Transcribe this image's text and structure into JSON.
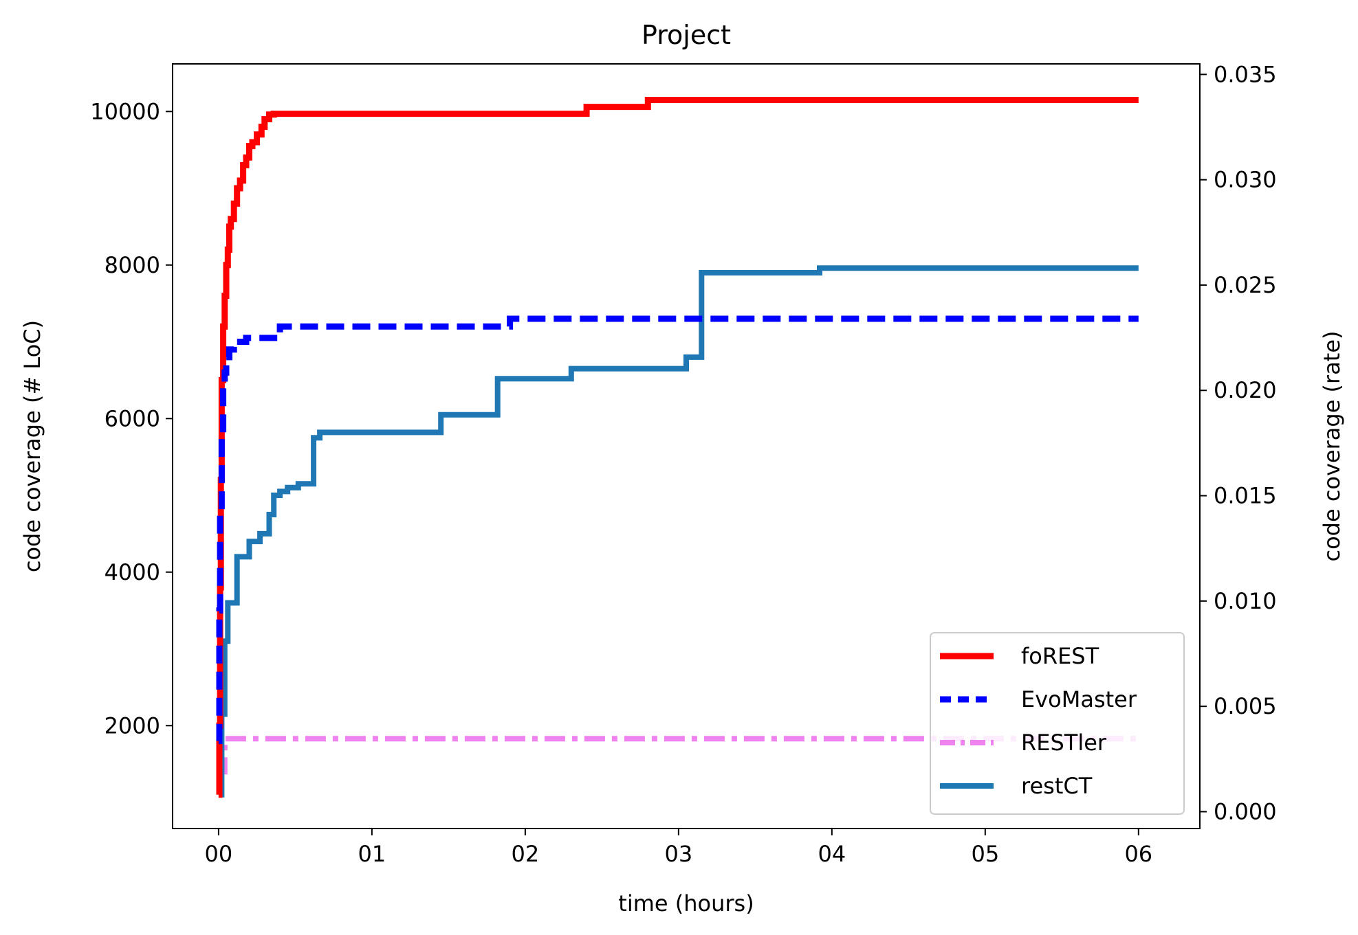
{
  "chart_data": {
    "type": "line",
    "title": "Project",
    "xlabel": "time (hours)",
    "ylabel": "code coverage (# LoC)",
    "y2label": "code coverage (rate)",
    "xlim": [
      -0.3,
      6.4
    ],
    "ylim": [
      660,
      10620
    ],
    "y2lim": [
      -0.0008,
      0.0355
    ],
    "xticks": [
      0,
      1,
      2,
      3,
      4,
      5,
      6
    ],
    "xtick_labels": [
      "00",
      "01",
      "02",
      "03",
      "04",
      "05",
      "06"
    ],
    "yticks": [
      2000,
      4000,
      6000,
      8000,
      10000
    ],
    "ytick_labels": [
      "2000",
      "4000",
      "6000",
      "8000",
      "10000"
    ],
    "y2ticks": [
      0.0,
      0.005,
      0.01,
      0.015,
      0.02,
      0.025,
      0.03,
      0.035
    ],
    "y2tick_labels": [
      "0.000",
      "0.005",
      "0.010",
      "0.015",
      "0.020",
      "0.025",
      "0.030",
      "0.035"
    ],
    "grid": false,
    "legend_position": "bottom-right",
    "series": [
      {
        "name": "foREST",
        "color": "#ff0000",
        "style": "solid",
        "step": true,
        "x": [
          0,
          0.005,
          0.01,
          0.015,
          0.02,
          0.03,
          0.04,
          0.05,
          0.06,
          0.07,
          0.08,
          0.1,
          0.12,
          0.14,
          0.16,
          0.18,
          0.2,
          0.22,
          0.25,
          0.28,
          0.3,
          0.33,
          0.36,
          2.4,
          2.8,
          6.0
        ],
        "values": [
          1100,
          2000,
          3800,
          5200,
          6500,
          7200,
          7600,
          8000,
          8200,
          8500,
          8600,
          8800,
          9000,
          9100,
          9300,
          9400,
          9550,
          9600,
          9700,
          9800,
          9900,
          9960,
          9970,
          10060,
          10150,
          10150
        ]
      },
      {
        "name": "EvoMaster",
        "color": "#0000ff",
        "style": "dashed",
        "step": true,
        "x": [
          0,
          0.005,
          0.01,
          0.02,
          0.03,
          0.04,
          0.05,
          0.07,
          0.1,
          0.18,
          0.4,
          1.9,
          6.0
        ],
        "values": [
          1800,
          3500,
          4800,
          5800,
          6400,
          6600,
          6800,
          6900,
          7000,
          7050,
          7200,
          7300,
          7300
        ]
      },
      {
        "name": "RESTler",
        "color": "#ee82ee",
        "style": "dashdot",
        "step": true,
        "x": [
          0,
          0.03,
          0.04,
          6.0
        ],
        "values": [
          1400,
          1400,
          1830,
          1830
        ]
      },
      {
        "name": "restCT",
        "color": "#1f77b4",
        "style": "solid",
        "step": true,
        "x": [
          0,
          0.02,
          0.04,
          0.06,
          0.12,
          0.2,
          0.27,
          0.33,
          0.36,
          0.4,
          0.45,
          0.52,
          0.62,
          0.66,
          1.45,
          1.82,
          2.3,
          3.05,
          3.15,
          3.92,
          6.0
        ],
        "values": [
          1100,
          2150,
          3100,
          3600,
          4200,
          4400,
          4500,
          4750,
          5000,
          5050,
          5100,
          5150,
          5750,
          5820,
          6050,
          6520,
          6650,
          6800,
          7900,
          7960,
          7960
        ]
      }
    ]
  }
}
